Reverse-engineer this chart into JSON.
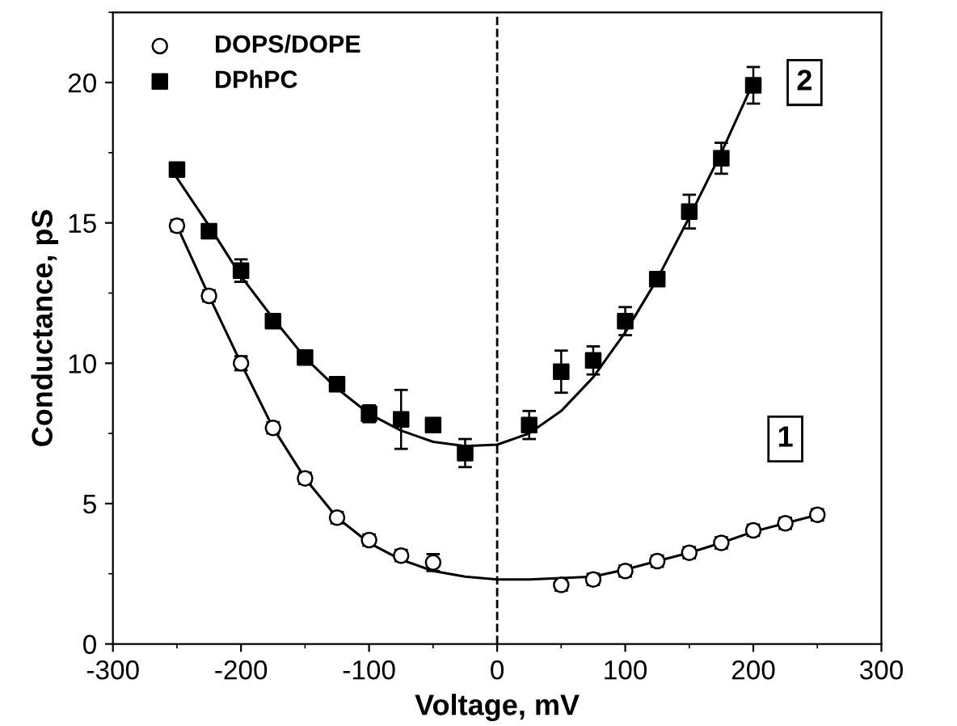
{
  "chart_data": {
    "type": "scatter",
    "xlabel": "Voltage, mV",
    "ylabel": "Conductance, pS",
    "xlim": [
      -300,
      300
    ],
    "ylim": [
      0,
      22.5
    ],
    "xticks": [
      -300,
      -200,
      -100,
      0,
      100,
      200,
      300
    ],
    "yticks": [
      0,
      5,
      10,
      15,
      20
    ],
    "grid": false,
    "legend": "top left",
    "series": [
      {
        "name": "DOPS/DOPE",
        "marker": "circle",
        "color": "#000000",
        "x": [
          -250,
          -225,
          -200,
          -175,
          -150,
          -125,
          -100,
          -75,
          -50,
          50,
          75,
          100,
          125,
          150,
          175,
          200,
          225,
          250
        ],
        "values": [
          14.9,
          12.4,
          10.0,
          7.7,
          5.9,
          4.5,
          3.7,
          3.15,
          2.9,
          2.1,
          2.3,
          2.6,
          2.95,
          3.25,
          3.6,
          4.05,
          4.3,
          4.6
        ],
        "errors": [
          0.2,
          0.2,
          0.25,
          0.2,
          0.2,
          0.2,
          0.2,
          0.2,
          0.3,
          0.2,
          0.2,
          0.2,
          0.2,
          0.2,
          0.2,
          0.2,
          0.2,
          0.2
        ]
      },
      {
        "name": "DPhPC",
        "marker": "square",
        "color": "#000000",
        "x": [
          -250,
          -225,
          -200,
          -175,
          -150,
          -125,
          -100,
          -75,
          -50,
          -25,
          25,
          50,
          75,
          100,
          125,
          150,
          175,
          200
        ],
        "values": [
          16.9,
          14.7,
          13.3,
          11.5,
          10.2,
          9.25,
          8.2,
          8.0,
          7.8,
          6.8,
          7.8,
          9.7,
          10.1,
          11.5,
          13.0,
          15.4,
          17.3,
          19.9
        ],
        "errors": [
          null,
          null,
          0.4,
          null,
          null,
          null,
          0.3,
          1.05,
          null,
          0.5,
          0.5,
          0.75,
          0.5,
          0.5,
          null,
          0.6,
          0.55,
          0.65
        ]
      },
      {
        "type": "line",
        "color": "#000000",
        "x": [
          -250,
          -225,
          -200,
          -175,
          -150,
          -125,
          -100,
          -75,
          -50,
          -25,
          0,
          25,
          50,
          75,
          100,
          125,
          150,
          175,
          200,
          225,
          250
        ],
        "values": [
          14.9,
          12.4,
          10.0,
          7.7,
          5.9,
          4.5,
          3.6,
          3.0,
          2.6,
          2.4,
          2.3,
          2.3,
          2.35,
          2.4,
          2.65,
          2.95,
          3.25,
          3.6,
          4.0,
          4.3,
          4.6
        ]
      },
      {
        "type": "line",
        "color": "#000000",
        "x": [
          -250,
          -225,
          -200,
          -175,
          -150,
          -125,
          -100,
          -75,
          -50,
          -25,
          0,
          25,
          50,
          75,
          100,
          125,
          150,
          175,
          200
        ],
        "values": [
          16.6,
          14.9,
          13.1,
          11.6,
          10.2,
          9.1,
          8.2,
          7.6,
          7.2,
          7.05,
          7.1,
          7.5,
          8.3,
          9.5,
          11.1,
          13.0,
          15.2,
          17.5,
          20.0
        ]
      }
    ],
    "ref_lines": [
      {
        "axis": "x",
        "value": 0,
        "color": "#000000",
        "line_style": "dashed"
      }
    ],
    "annotations": [
      {
        "text": "2",
        "x": 240,
        "y": 20.0
      },
      {
        "text": "1",
        "x": 225,
        "y": 7.3
      }
    ]
  }
}
